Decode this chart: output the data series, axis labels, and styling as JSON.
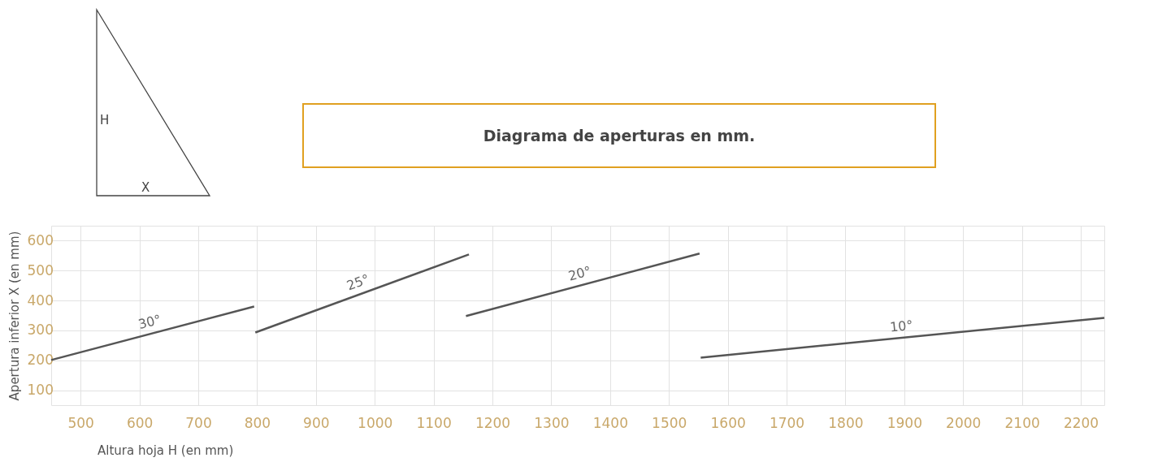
{
  "chart_data": {
    "type": "line",
    "title": "Diagrama de aperturas en mm.",
    "xlabel": "Altura hoja H (en mm)",
    "ylabel": "Apertura inferior X (en mm)",
    "annotations": [
      "H",
      "X"
    ],
    "series": [
      {
        "name": "30°",
        "color": "#555555",
        "x": [
          450,
          795
        ],
        "values": [
          201,
          380
        ]
      },
      {
        "name": "25°",
        "color": "#555555",
        "x": [
          797,
          1160
        ],
        "values": [
          293,
          554
        ]
      },
      {
        "name": "20°",
        "color": "#555555",
        "x": [
          1155,
          1552
        ],
        "values": [
          348,
          557
        ]
      },
      {
        "name": "10°",
        "color": "#555555",
        "x": [
          1554,
          2240
        ],
        "values": [
          209,
          342
        ]
      }
    ],
    "xlim": [
      450,
      2240
    ],
    "xticks": [
      500,
      600,
      700,
      800,
      900,
      1000,
      1100,
      1200,
      1300,
      1400,
      1500,
      1600,
      1700,
      1800,
      1900,
      2000,
      2100,
      2200
    ],
    "ylim": [
      50,
      650
    ],
    "yticks": [
      100,
      200,
      300,
      400,
      500,
      600
    ],
    "grid": true,
    "legend": false,
    "marker": "none",
    "line_style": "solid"
  }
}
